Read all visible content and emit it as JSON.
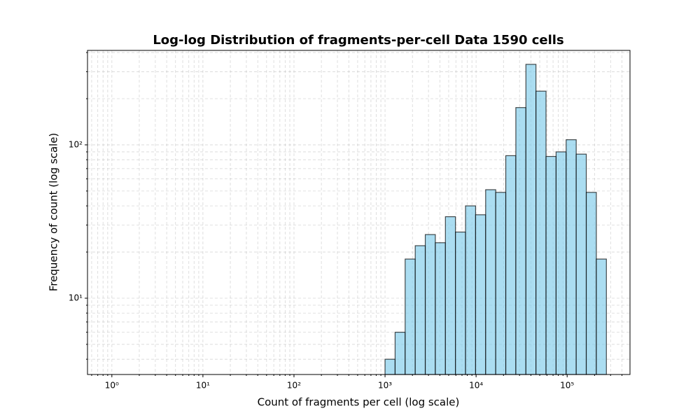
{
  "chart_data": {
    "type": "histogram",
    "title": "Log-log Distribution of fragments-per-cell Data 1590 cells",
    "xlabel": "Count of fragments per cell (log scale)",
    "ylabel": "Frequency of count (log scale)",
    "bins": [
      1000,
      1290,
      1663,
      2146,
      2767,
      3568,
      4603,
      5935,
      7656,
      9874,
      12735,
      16426,
      21184,
      27324,
      35237,
      45446,
      58614,
      75597,
      97499,
      125750,
      162181,
      209170,
      269774
    ],
    "values": [
      4,
      6,
      18,
      22,
      26,
      23,
      34,
      27,
      40,
      35,
      51,
      49,
      85,
      175,
      335,
      224,
      84,
      90,
      108,
      87,
      49,
      18
    ],
    "color": "#87ceeb",
    "edgecolor": "#000000",
    "alpha": 0.7,
    "xscale": "log",
    "yscale": "log",
    "grid": true,
    "xlim": [
      0.54,
      490000
    ],
    "ylim": [
      3.18,
      413
    ],
    "xticks": [
      {
        "value": 1,
        "label": "10⁰"
      },
      {
        "value": 10,
        "label": "10¹"
      },
      {
        "value": 100,
        "label": "10²"
      },
      {
        "value": 1000,
        "label": "10³"
      },
      {
        "value": 10000,
        "label": "10⁴"
      },
      {
        "value": 100000,
        "label": "10⁵"
      }
    ],
    "yticks": [
      {
        "value": 10,
        "label": "10¹"
      },
      {
        "value": 100,
        "label": "10²"
      }
    ],
    "xminorticks": [
      0.6,
      0.7,
      0.8,
      0.9,
      2,
      3,
      4,
      5,
      6,
      7,
      8,
      9,
      20,
      30,
      40,
      50,
      60,
      70,
      80,
      90,
      200,
      300,
      400,
      500,
      600,
      700,
      800,
      900,
      2000,
      3000,
      4000,
      5000,
      6000,
      7000,
      8000,
      9000,
      20000,
      30000,
      40000,
      50000,
      60000,
      70000,
      80000,
      90000,
      200000,
      300000,
      400000
    ],
    "yminorticks": [
      4,
      5,
      6,
      7,
      8,
      9,
      20,
      30,
      40,
      50,
      60,
      70,
      80,
      90,
      200,
      300,
      400
    ]
  }
}
